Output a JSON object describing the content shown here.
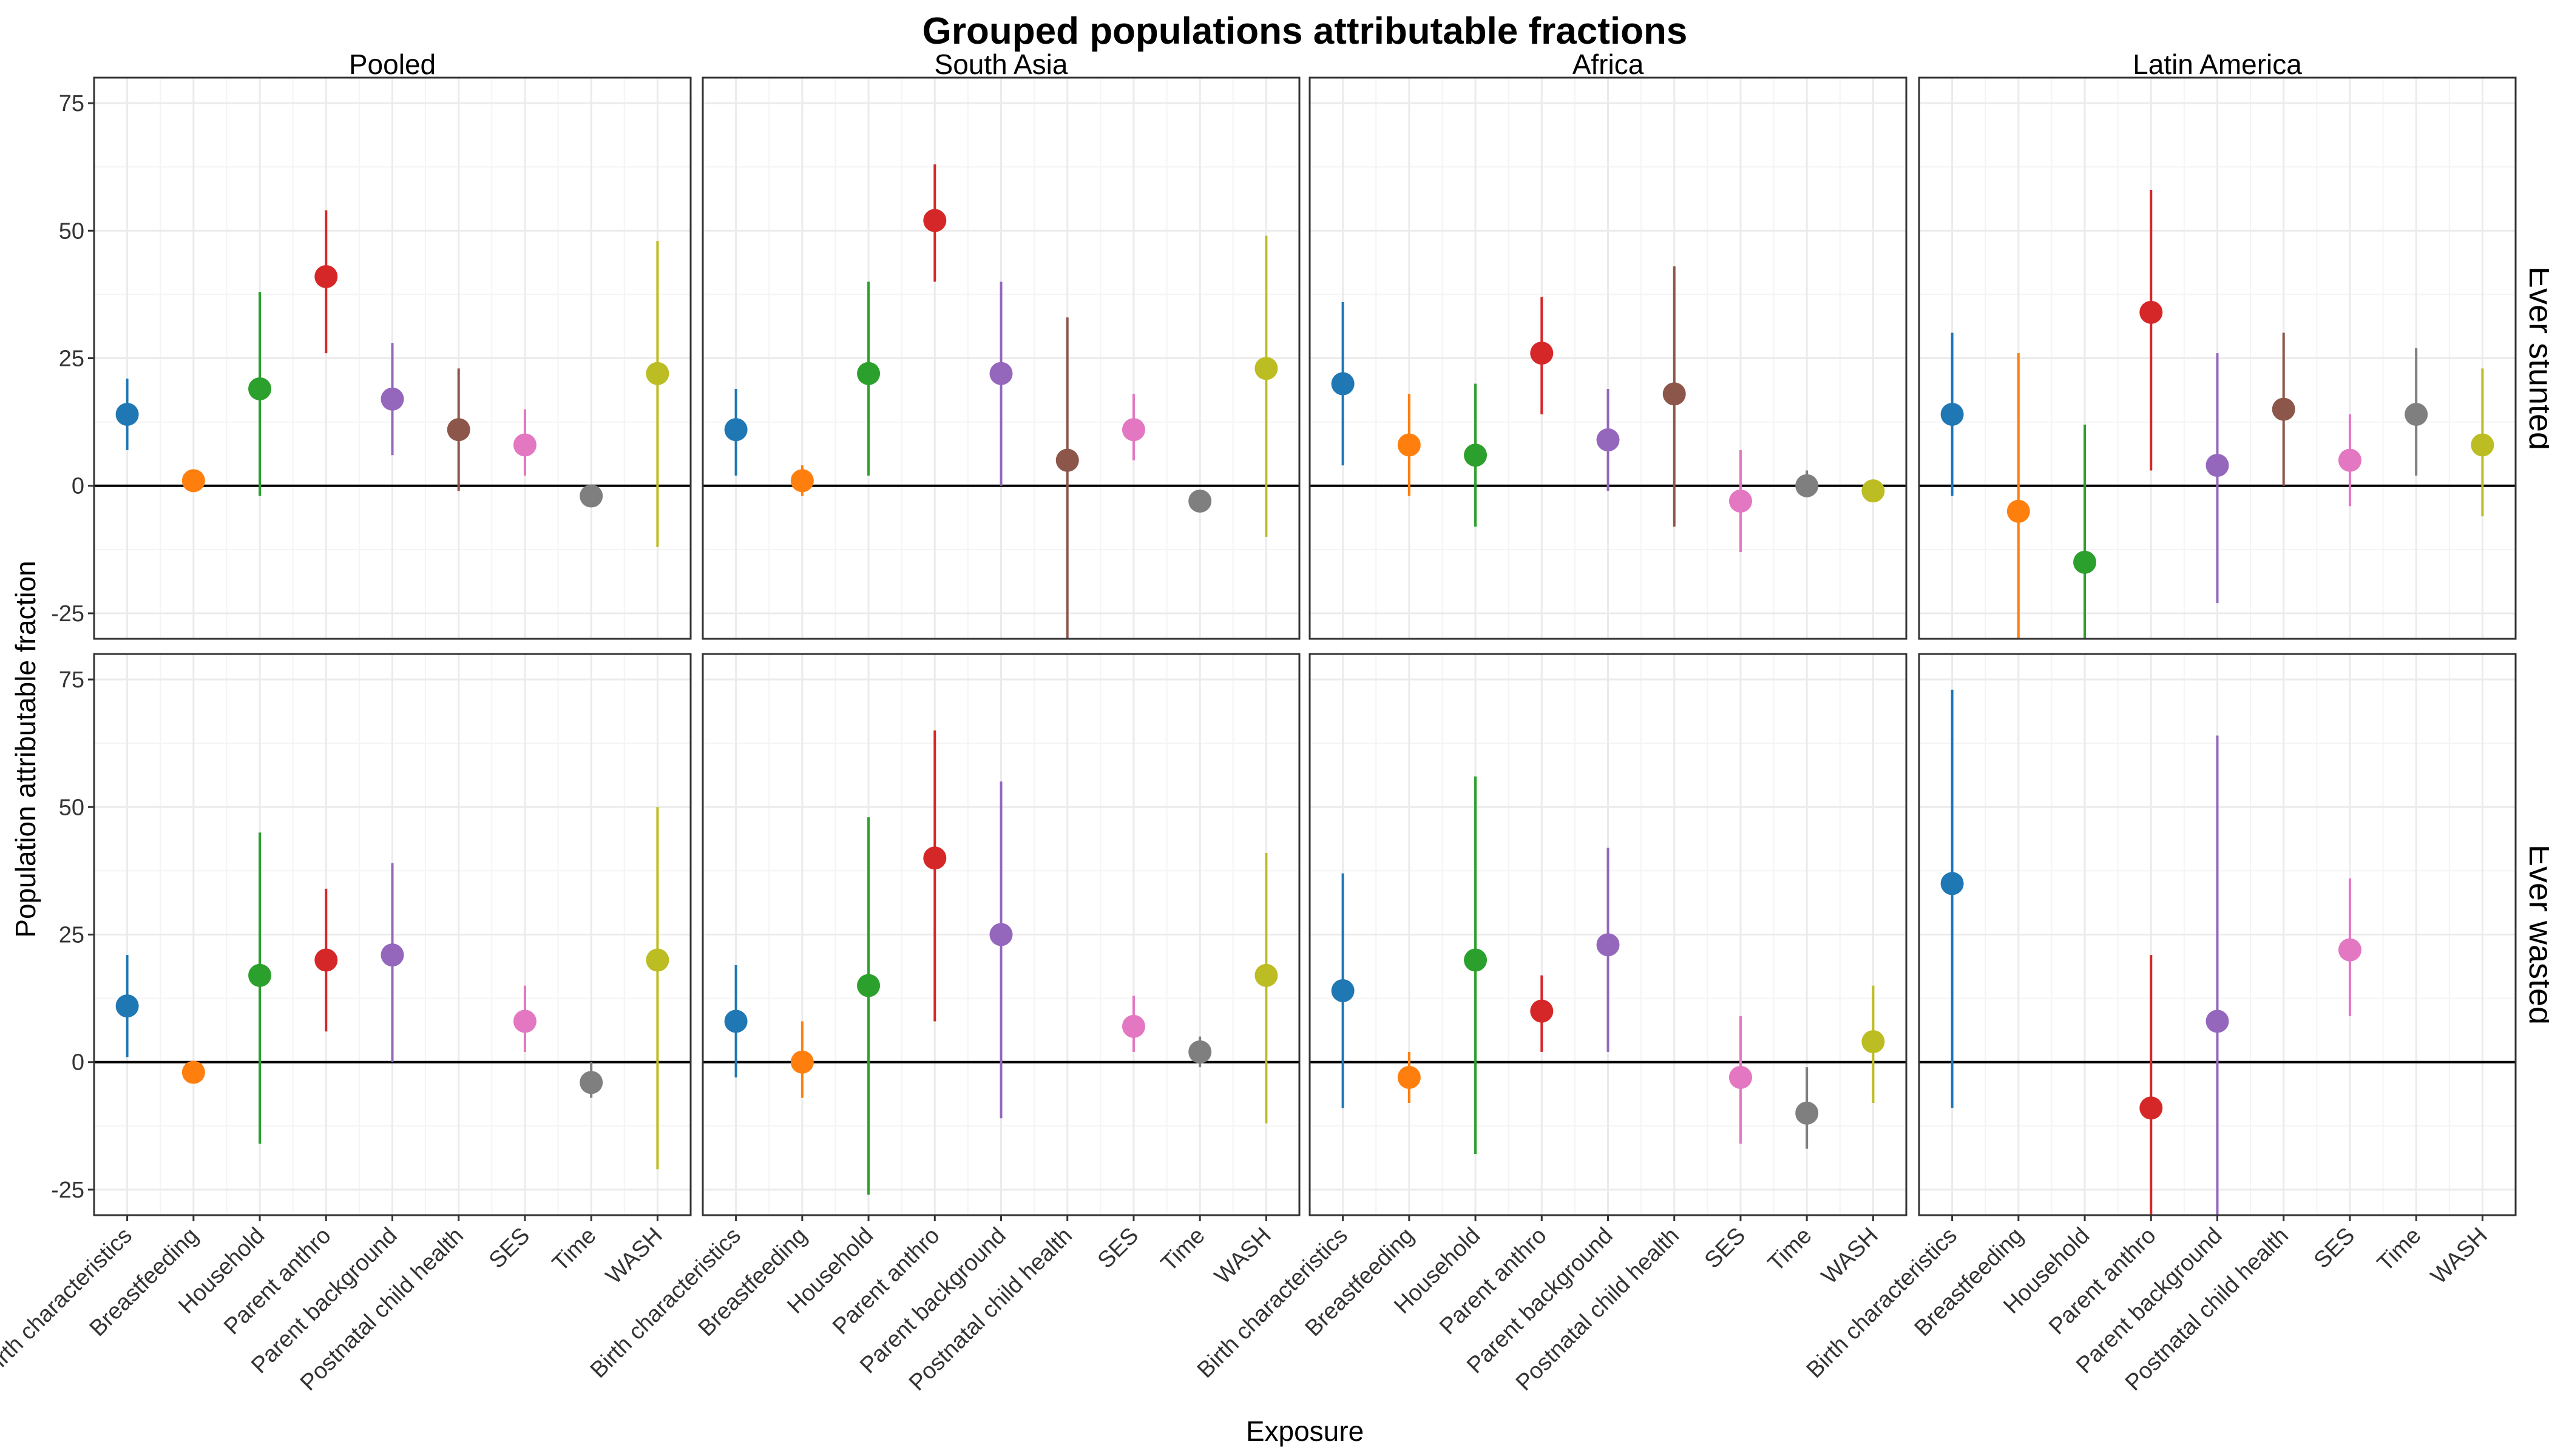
{
  "chart_data": {
    "type": "scatter",
    "title": "Grouped populations attributable fractions",
    "xlabel": "Exposure",
    "ylabel": "Population attributable fraction",
    "ylim": [
      -30,
      80
    ],
    "yticks": [
      -25,
      0,
      25,
      50,
      75
    ],
    "grid": true,
    "legend": "none",
    "columns": [
      "Pooled",
      "South Asia",
      "Africa",
      "Latin America"
    ],
    "rows": [
      "Ever stunted",
      "Ever wasted"
    ],
    "categories": [
      "Birth characteristics",
      "Breastfeeding",
      "Household",
      "Parent anthro",
      "Parent background",
      "Postnatal child health",
      "SES",
      "Time",
      "WASH"
    ],
    "colors": [
      "#1f77b4",
      "#ff7f0e",
      "#2ca02c",
      "#d62728",
      "#9467bd",
      "#8c564b",
      "#e377c2",
      "#7f7f7f",
      "#bcbd22"
    ],
    "panels": [
      {
        "row": "Ever stunted",
        "col": "Pooled",
        "points": [
          {
            "x": "Birth characteristics",
            "y": 14,
            "lo": 7,
            "hi": 21
          },
          {
            "x": "Breastfeeding",
            "y": 1,
            "lo": -1,
            "hi": 3
          },
          {
            "x": "Household",
            "y": 19,
            "lo": -2,
            "hi": 38
          },
          {
            "x": "Parent anthro",
            "y": 41,
            "lo": 26,
            "hi": 54
          },
          {
            "x": "Parent background",
            "y": 17,
            "lo": 6,
            "hi": 28
          },
          {
            "x": "Postnatal child health",
            "y": 11,
            "lo": -1,
            "hi": 23
          },
          {
            "x": "SES",
            "y": 8,
            "lo": 2,
            "hi": 15
          },
          {
            "x": "Time",
            "y": -2,
            "lo": -3,
            "hi": 0
          },
          {
            "x": "WASH",
            "y": 22,
            "lo": -12,
            "hi": 48
          }
        ]
      },
      {
        "row": "Ever stunted",
        "col": "South Asia",
        "points": [
          {
            "x": "Birth characteristics",
            "y": 11,
            "lo": 2,
            "hi": 19
          },
          {
            "x": "Breastfeeding",
            "y": 1,
            "lo": -2,
            "hi": 4
          },
          {
            "x": "Household",
            "y": 22,
            "lo": 2,
            "hi": 40
          },
          {
            "x": "Parent anthro",
            "y": 52,
            "lo": 40,
            "hi": 63
          },
          {
            "x": "Parent background",
            "y": 22,
            "lo": 0,
            "hi": 40
          },
          {
            "x": "Postnatal child health",
            "y": 5,
            "lo": -30,
            "hi": 33
          },
          {
            "x": "SES",
            "y": 11,
            "lo": 5,
            "hi": 18
          },
          {
            "x": "Time",
            "y": -3,
            "lo": -4,
            "hi": -2
          },
          {
            "x": "WASH",
            "y": 23,
            "lo": -10,
            "hi": 49
          }
        ]
      },
      {
        "row": "Ever stunted",
        "col": "Africa",
        "points": [
          {
            "x": "Birth characteristics",
            "y": 20,
            "lo": 4,
            "hi": 36
          },
          {
            "x": "Breastfeeding",
            "y": 8,
            "lo": -2,
            "hi": 18
          },
          {
            "x": "Household",
            "y": 6,
            "lo": -8,
            "hi": 20
          },
          {
            "x": "Parent anthro",
            "y": 26,
            "lo": 14,
            "hi": 37
          },
          {
            "x": "Parent background",
            "y": 9,
            "lo": -1,
            "hi": 19
          },
          {
            "x": "Postnatal child health",
            "y": 18,
            "lo": -8,
            "hi": 43
          },
          {
            "x": "SES",
            "y": -3,
            "lo": -13,
            "hi": 7
          },
          {
            "x": "Time",
            "y": 0,
            "lo": -2,
            "hi": 3
          },
          {
            "x": "WASH",
            "y": -1,
            "lo": -2,
            "hi": 0
          }
        ]
      },
      {
        "row": "Ever stunted",
        "col": "Latin America",
        "points": [
          {
            "x": "Birth characteristics",
            "y": 14,
            "lo": -2,
            "hi": 30
          },
          {
            "x": "Breastfeeding",
            "y": -5,
            "lo": -30,
            "hi": 26
          },
          {
            "x": "Household",
            "y": -15,
            "lo": -30,
            "hi": 12
          },
          {
            "x": "Parent anthro",
            "y": 34,
            "lo": 3,
            "hi": 58
          },
          {
            "x": "Parent background",
            "y": 4,
            "lo": -23,
            "hi": 26
          },
          {
            "x": "Postnatal child health",
            "y": 15,
            "lo": 0,
            "hi": 30
          },
          {
            "x": "SES",
            "y": 5,
            "lo": -4,
            "hi": 14
          },
          {
            "x": "Time",
            "y": 14,
            "lo": 2,
            "hi": 27
          },
          {
            "x": "WASH",
            "y": 8,
            "lo": -6,
            "hi": 23
          }
        ]
      },
      {
        "row": "Ever wasted",
        "col": "Pooled",
        "points": [
          {
            "x": "Birth characteristics",
            "y": 11,
            "lo": 1,
            "hi": 21
          },
          {
            "x": "Breastfeeding",
            "y": -2,
            "lo": -3,
            "hi": 0
          },
          {
            "x": "Household",
            "y": 17,
            "lo": -16,
            "hi": 45
          },
          {
            "x": "Parent anthro",
            "y": 20,
            "lo": 6,
            "hi": 34
          },
          {
            "x": "Parent background",
            "y": 21,
            "lo": 0,
            "hi": 39
          },
          {
            "x": "SES",
            "y": 8,
            "lo": 2,
            "hi": 15
          },
          {
            "x": "Time",
            "y": -4,
            "lo": -7,
            "hi": 0
          },
          {
            "x": "WASH",
            "y": 20,
            "lo": -21,
            "hi": 50
          }
        ]
      },
      {
        "row": "Ever wasted",
        "col": "South Asia",
        "points": [
          {
            "x": "Birth characteristics",
            "y": 8,
            "lo": -3,
            "hi": 19
          },
          {
            "x": "Breastfeeding",
            "y": 0,
            "lo": -7,
            "hi": 8
          },
          {
            "x": "Household",
            "y": 15,
            "lo": -26,
            "hi": 48
          },
          {
            "x": "Parent anthro",
            "y": 40,
            "lo": 8,
            "hi": 65
          },
          {
            "x": "Parent background",
            "y": 25,
            "lo": -11,
            "hi": 55
          },
          {
            "x": "SES",
            "y": 7,
            "lo": 2,
            "hi": 13
          },
          {
            "x": "Time",
            "y": 2,
            "lo": -1,
            "hi": 5
          },
          {
            "x": "WASH",
            "y": 17,
            "lo": -12,
            "hi": 41
          }
        ]
      },
      {
        "row": "Ever wasted",
        "col": "Africa",
        "points": [
          {
            "x": "Birth characteristics",
            "y": 14,
            "lo": -9,
            "hi": 37
          },
          {
            "x": "Breastfeeding",
            "y": -3,
            "lo": -8,
            "hi": 2
          },
          {
            "x": "Household",
            "y": 20,
            "lo": -18,
            "hi": 56
          },
          {
            "x": "Parent anthro",
            "y": 10,
            "lo": 2,
            "hi": 17
          },
          {
            "x": "Parent background",
            "y": 23,
            "lo": 2,
            "hi": 42
          },
          {
            "x": "SES",
            "y": -3,
            "lo": -16,
            "hi": 9
          },
          {
            "x": "Time",
            "y": -10,
            "lo": -17,
            "hi": -1
          },
          {
            "x": "WASH",
            "y": 4,
            "lo": -8,
            "hi": 15
          }
        ]
      },
      {
        "row": "Ever wasted",
        "col": "Latin America",
        "points": [
          {
            "x": "Birth characteristics",
            "y": 35,
            "lo": -9,
            "hi": 73
          },
          {
            "x": "Parent anthro",
            "y": -9,
            "lo": -30,
            "hi": 21
          },
          {
            "x": "Parent background",
            "y": 8,
            "lo": -30,
            "hi": 64
          },
          {
            "x": "SES",
            "y": 22,
            "lo": 9,
            "hi": 36
          }
        ]
      }
    ]
  }
}
